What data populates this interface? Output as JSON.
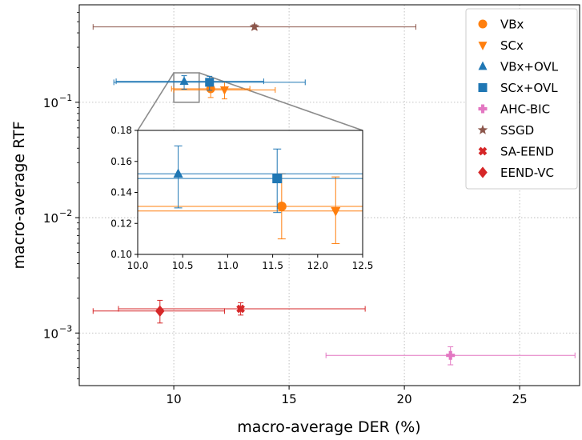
{
  "chart_data": [
    {
      "type": "scatter",
      "xlabel": "macro-average DER (%)",
      "ylabel": "macro-average RTF",
      "xscale": "linear",
      "yscale": "log",
      "xlim": [
        5.9,
        27.6
      ],
      "ylim": [
        0.00035,
        0.7
      ],
      "x_ticks": [
        10,
        15,
        20,
        25
      ],
      "y_ticks": [
        {
          "value": 0.001,
          "base": "10",
          "exp": "−3"
        },
        {
          "value": 0.01,
          "base": "10",
          "exp": "−2"
        },
        {
          "value": 0.1,
          "base": "10",
          "exp": "−1"
        }
      ],
      "grid": "dotted",
      "legend_position": "top-right",
      "series": [
        {
          "name": "VBx",
          "color": "#ff7f0e",
          "marker": "circle",
          "x": 11.6,
          "y": 0.131,
          "xerr": [
            9.9,
            13.3
          ],
          "yerr": [
            0.11,
            0.152
          ]
        },
        {
          "name": "SCx",
          "color": "#ff7f0e",
          "marker": "triangle-down",
          "x": 12.2,
          "y": 0.128,
          "xerr": [
            10.0,
            14.4
          ],
          "yerr": [
            0.107,
            0.15
          ]
        },
        {
          "name": "VBx+OVL",
          "color": "#1f77b4",
          "marker": "triangle-up",
          "x": 10.45,
          "y": 0.152,
          "xerr": [
            7.5,
            13.9
          ],
          "yerr": [
            0.13,
            0.17
          ]
        },
        {
          "name": "SCx+OVL",
          "color": "#1f77b4",
          "marker": "square",
          "x": 11.55,
          "y": 0.149,
          "xerr": [
            7.4,
            15.7
          ],
          "yerr": [
            0.127,
            0.168
          ]
        },
        {
          "name": "AHC-BIC",
          "color": "#e377c2",
          "marker": "plus",
          "x": 22.0,
          "y": 0.00064,
          "xerr": [
            16.6,
            27.4
          ],
          "yerr": [
            0.00053,
            0.00076
          ]
        },
        {
          "name": "SSGD",
          "color": "#8c564b",
          "marker": "star",
          "x": 13.5,
          "y": 0.45,
          "xerr": [
            6.5,
            20.5
          ],
          "yerr": [
            0.43,
            0.47
          ]
        },
        {
          "name": "SA-EEND",
          "color": "#d62728",
          "marker": "x",
          "x": 12.9,
          "y": 0.00162,
          "xerr": [
            7.6,
            18.3
          ],
          "yerr": [
            0.00143,
            0.00183
          ]
        },
        {
          "name": "EEND-VC",
          "color": "#d62728",
          "marker": "diamond",
          "x": 9.4,
          "y": 0.00155,
          "xerr": [
            6.5,
            12.2
          ],
          "yerr": [
            0.00122,
            0.00192
          ]
        }
      ]
    },
    {
      "type": "scatter",
      "role": "inset-zoom",
      "xlim": [
        10.0,
        12.5
      ],
      "ylim": [
        0.1,
        0.18
      ],
      "x_ticks": [
        "10.0",
        "10.5",
        "11.0",
        "11.5",
        "12.0",
        "12.5"
      ],
      "y_ticks": [
        "0.10",
        "0.12",
        "0.14",
        "0.16",
        "0.18"
      ],
      "zoom_region": {
        "x": [
          10.0,
          11.1
        ],
        "y": [
          0.1,
          0.18
        ]
      }
    }
  ]
}
